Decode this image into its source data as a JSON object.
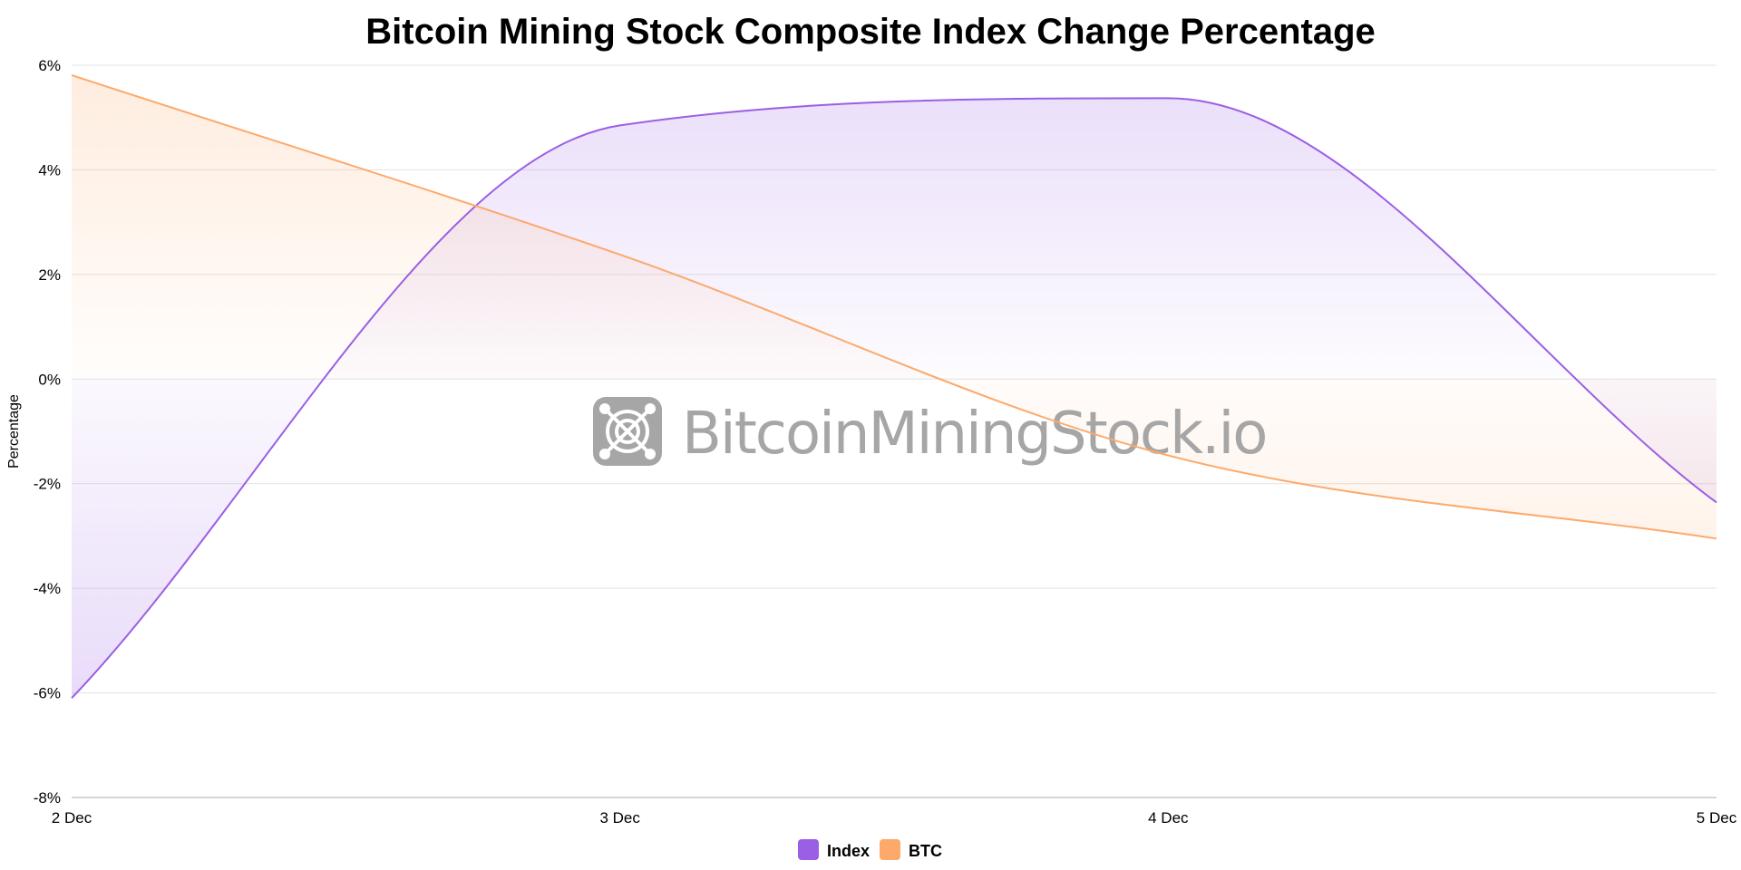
{
  "chart_data": {
    "type": "area",
    "title": "Bitcoin Mining Stock Composite Index Change Percentage",
    "xlabel": "",
    "ylabel": "Percentage",
    "categories": [
      "2 Dec",
      "3 Dec",
      "4 Dec",
      "5 Dec"
    ],
    "ylim": [
      -8,
      6
    ],
    "yticks": [
      6,
      4,
      2,
      0,
      -2,
      -4,
      -6,
      -8
    ],
    "ytick_suffix": "%",
    "grid": true,
    "interpolation": "monotone",
    "legend_position": "bottom-center",
    "series": [
      {
        "name": "Index",
        "color": "#9a5fe4",
        "values": [
          -6.1,
          4.85,
          5.37,
          -2.36
        ]
      },
      {
        "name": "BTC",
        "color": "#fda96a",
        "values": [
          5.81,
          2.38,
          -1.46,
          -3.05
        ]
      }
    ]
  },
  "watermark": {
    "text": "BitcoinMiningStock.io",
    "icon": "mining-fan-logo-icon",
    "color": "#a6a6a6"
  }
}
